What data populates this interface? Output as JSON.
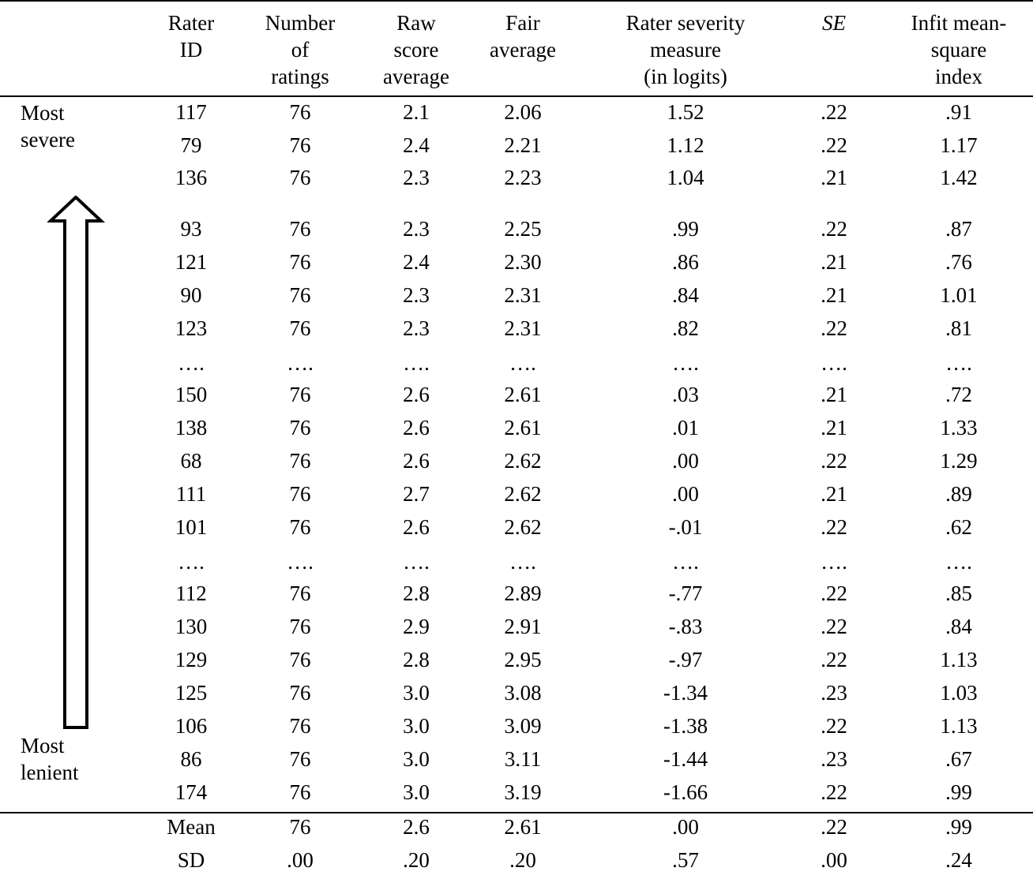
{
  "table": {
    "headers": [
      [
        "Rater",
        "ID"
      ],
      [
        "Number",
        "of",
        "ratings"
      ],
      [
        "Raw",
        "score",
        "average"
      ],
      [
        "Fair",
        "average"
      ],
      [
        "Rater severity",
        "measure",
        "(in logits)"
      ],
      [
        "SE"
      ],
      [
        "Infit mean-",
        "square",
        "index"
      ]
    ],
    "top_label": [
      "Most",
      "severe"
    ],
    "bottom_label": [
      "Most",
      "lenient"
    ],
    "rows": [
      [
        "117",
        "76",
        "2.1",
        "2.06",
        "1.52",
        ".22",
        ".91"
      ],
      [
        "79",
        "76",
        "2.4",
        "2.21",
        "1.12",
        ".22",
        "1.17"
      ],
      [
        "136",
        "76",
        "2.3",
        "2.23",
        "1.04",
        ".21",
        "1.42"
      ],
      [
        "93",
        "76",
        "2.3",
        "2.25",
        ".99",
        ".22",
        ".87"
      ],
      [
        "121",
        "76",
        "2.4",
        "2.30",
        ".86",
        ".21",
        ".76"
      ],
      [
        "90",
        "76",
        "2.3",
        "2.31",
        ".84",
        ".21",
        "1.01"
      ],
      [
        "123",
        "76",
        "2.3",
        "2.31",
        ".82",
        ".22",
        ".81"
      ],
      [
        "….",
        "….",
        "….",
        "….",
        "….",
        "….",
        "…."
      ],
      [
        "150",
        "76",
        "2.6",
        "2.61",
        ".03",
        ".21",
        ".72"
      ],
      [
        "138",
        "76",
        "2.6",
        "2.61",
        ".01",
        ".21",
        "1.33"
      ],
      [
        "68",
        "76",
        "2.6",
        "2.62",
        ".00",
        ".22",
        "1.29"
      ],
      [
        "111",
        "76",
        "2.7",
        "2.62",
        ".00",
        ".21",
        ".89"
      ],
      [
        "101",
        "76",
        "2.6",
        "2.62",
        "-.01",
        ".22",
        ".62"
      ],
      [
        "….",
        "….",
        "….",
        "….",
        "….",
        "….",
        "…."
      ],
      [
        "112",
        "76",
        "2.8",
        "2.89",
        "-.77",
        ".22",
        ".85"
      ],
      [
        "130",
        "76",
        "2.9",
        "2.91",
        "-.83",
        ".22",
        ".84"
      ],
      [
        "129",
        "76",
        "2.8",
        "2.95",
        "-.97",
        ".22",
        "1.13"
      ],
      [
        "125",
        "76",
        "3.0",
        "3.08",
        "-1.34",
        ".23",
        "1.03"
      ],
      [
        "106",
        "76",
        "3.0",
        "3.09",
        "-1.38",
        ".22",
        "1.13"
      ],
      [
        "86",
        "76",
        "3.0",
        "3.11",
        "-1.44",
        ".23",
        ".67"
      ],
      [
        "174",
        "76",
        "3.0",
        "3.19",
        "-1.66",
        ".22",
        ".99"
      ]
    ],
    "summary": [
      [
        "Mean",
        "76",
        "2.6",
        "2.61",
        ".00",
        ".22",
        ".99"
      ],
      [
        "SD",
        ".00",
        ".20",
        ".20",
        ".57",
        ".00",
        ".24"
      ]
    ]
  }
}
